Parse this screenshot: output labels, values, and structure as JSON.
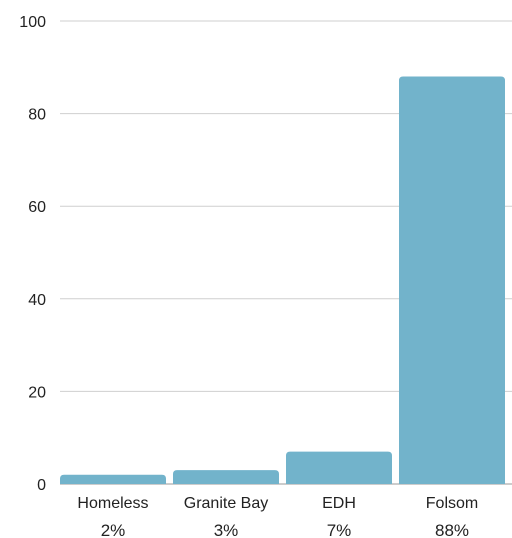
{
  "chart_data": {
    "type": "bar",
    "categories": [
      "Homeless",
      "Granite Bay",
      "EDH",
      "Folsom"
    ],
    "values": [
      2,
      3,
      7,
      88
    ],
    "value_labels": [
      "2%",
      "3%",
      "7%",
      "88%"
    ],
    "title": "",
    "xlabel": "",
    "ylabel": "",
    "ylim": [
      0,
      100
    ],
    "yticks": [
      "0",
      "20",
      "40",
      "60",
      "80",
      "100"
    ],
    "grid": true,
    "legend": "none",
    "bar_color": "#72b3cb"
  }
}
